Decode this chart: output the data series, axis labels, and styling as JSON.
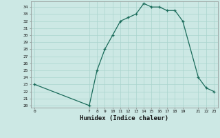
{
  "x": [
    0,
    7,
    8,
    9,
    10,
    11,
    12,
    13,
    14,
    15,
    16,
    17,
    18,
    19,
    21,
    22,
    23
  ],
  "y": [
    23,
    20,
    25,
    28,
    30,
    32,
    32.5,
    33,
    34.5,
    34,
    34,
    33.5,
    33.5,
    32,
    24,
    22.5,
    22
  ],
  "xlabel": "Humidex (Indice chaleur)",
  "bg_color": "#cce8e4",
  "grid_color": "#aad4ce",
  "line_color": "#1a6b5a",
  "marker": "+",
  "xlim_min": -0.5,
  "xlim_max": 23.5,
  "ylim_min": 19.7,
  "ylim_max": 34.8,
  "xticks": [
    0,
    7,
    8,
    9,
    10,
    11,
    12,
    13,
    14,
    15,
    16,
    17,
    18,
    19,
    21,
    22,
    23
  ],
  "yticks": [
    20,
    21,
    22,
    23,
    24,
    25,
    26,
    27,
    28,
    29,
    30,
    31,
    32,
    33,
    34
  ],
  "tick_fontsize": 4.5,
  "label_fontsize": 6.5
}
